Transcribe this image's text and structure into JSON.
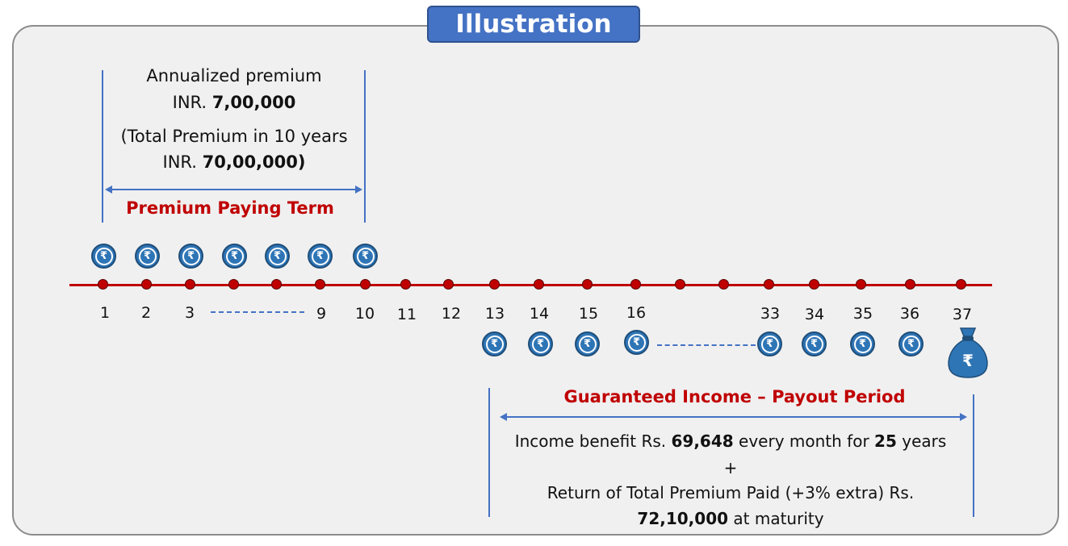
{
  "title": "Illustration",
  "premium": {
    "line1": "Annualized premium",
    "line2_prefix": "INR. ",
    "line2_bold": "7,00,000",
    "line3": "(Total Premium in 10 years",
    "line4_prefix": "INR. ",
    "line4_bold": "70,00,000)",
    "term_label": "Premium Paying Term"
  },
  "timeline": {
    "ticks": [
      "1",
      "2",
      "3",
      "9",
      "10",
      "11",
      "12",
      "13",
      "14",
      "15",
      "16",
      "33",
      "34",
      "35",
      "36",
      "37"
    ],
    "currency_symbol": "₹"
  },
  "payout": {
    "label": "Guaranteed Income – Payout Period",
    "benefit_prefix": "Income benefit Rs. ",
    "benefit_amount": "69,648",
    "benefit_mid": " every month for ",
    "benefit_years": "25",
    "benefit_suffix": " years",
    "plus": "+",
    "return_line": "Return of Total Premium Paid (+3% extra) Rs.",
    "maturity_amount": "72,10,000",
    "maturity_suffix": " at maturity"
  },
  "colors": {
    "accent_blue": "#4472c4",
    "timeline_red": "#c00000",
    "coin_blue": "#2e75b6"
  },
  "icons": {
    "coin": "rupee-coin-icon",
    "bag": "money-bag-icon"
  }
}
